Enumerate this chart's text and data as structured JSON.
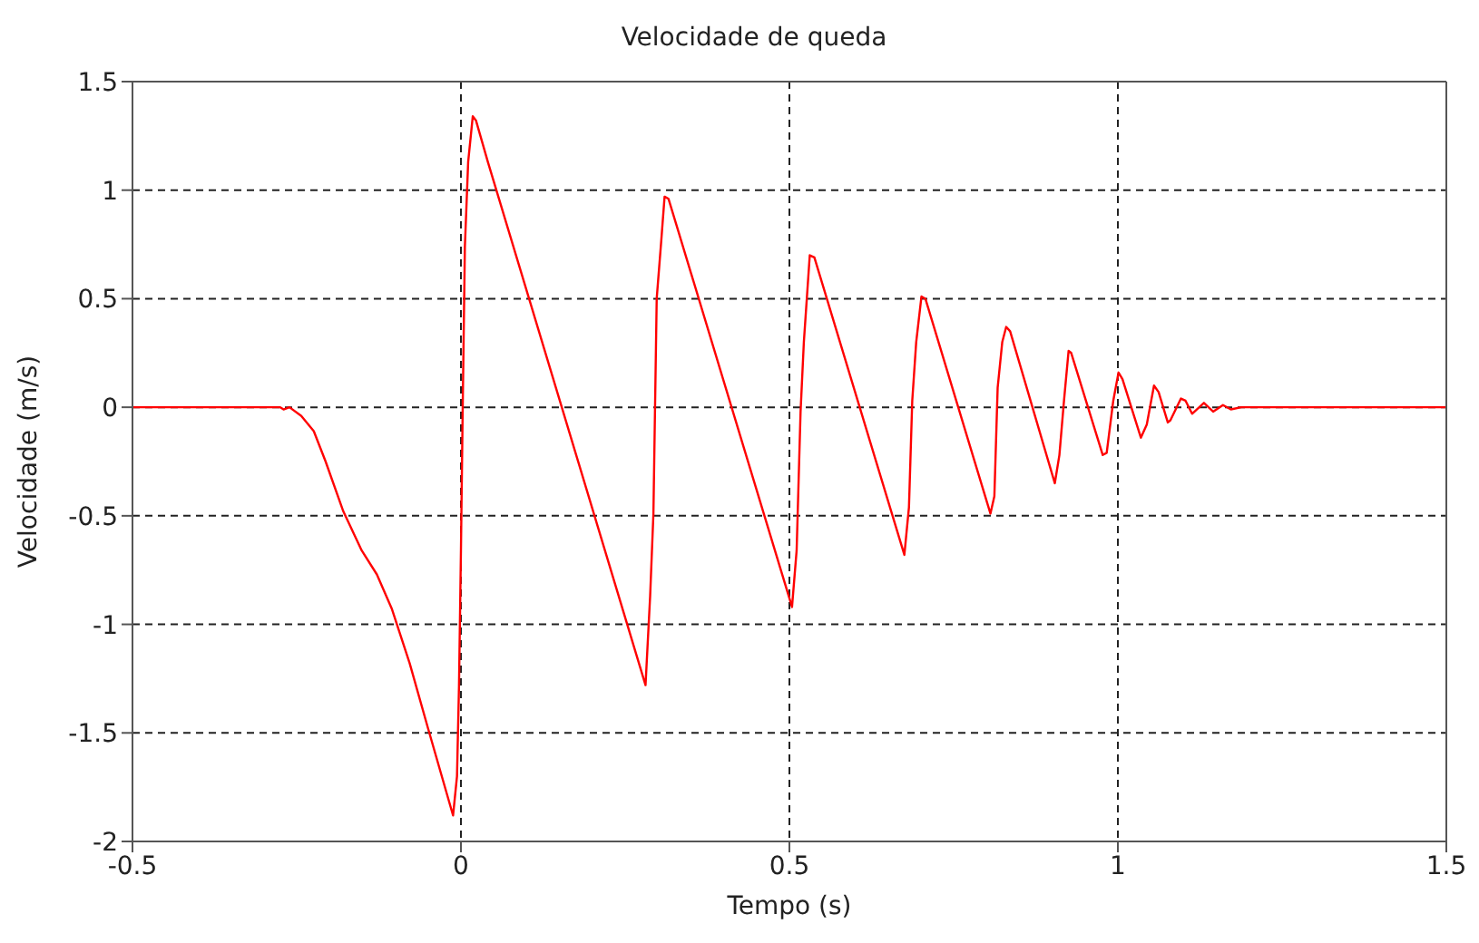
{
  "chart_data": {
    "type": "line",
    "title": "Velocidade de queda",
    "xlabel": "Tempo (s)",
    "ylabel": "Velocidade (m/s)",
    "xlim": [
      -0.5,
      1.5
    ],
    "xticks": [
      -0.5,
      0,
      0.5,
      1,
      1.5
    ],
    "ylim": [
      -2,
      1.5
    ],
    "yticks": [
      -2,
      -1.5,
      -1,
      -0.5,
      0,
      0.5,
      1,
      1.5
    ],
    "grid": true,
    "marker": "none",
    "line_style": "solid",
    "series": [
      {
        "color": "#ff0000",
        "x": [
          -0.5,
          -0.275,
          -0.27,
          -0.261,
          -0.243,
          -0.224,
          -0.206,
          -0.179,
          -0.151,
          -0.128,
          -0.105,
          -0.078,
          -0.05,
          -0.012,
          -0.006,
          -0.003,
          0.0,
          0.003,
          0.006,
          0.011,
          0.018,
          0.023,
          0.041,
          0.281,
          0.288,
          0.293,
          0.298,
          0.305,
          0.31,
          0.316,
          0.504,
          0.511,
          0.517,
          0.522,
          0.531,
          0.538,
          0.675,
          0.682,
          0.687,
          0.693,
          0.701,
          0.707,
          0.806,
          0.812,
          0.817,
          0.824,
          0.83,
          0.836,
          0.904,
          0.911,
          0.918,
          0.925,
          0.929,
          0.977,
          0.983,
          0.993,
          1.001,
          1.007,
          1.035,
          1.044,
          1.055,
          1.062,
          1.076,
          1.08,
          1.096,
          1.103,
          1.113,
          1.131,
          1.145,
          1.16,
          1.172,
          1.188,
          1.5
        ],
        "values": [
          0,
          0,
          -0.01,
          0,
          -0.04,
          -0.11,
          -0.25,
          -0.48,
          -0.66,
          -0.77,
          -0.93,
          -1.18,
          -1.48,
          -1.88,
          -1.7,
          -1.29,
          -0.66,
          0.07,
          0.74,
          1.13,
          1.34,
          1.32,
          1.13,
          -1.28,
          -0.87,
          -0.49,
          0.5,
          0.77,
          0.97,
          0.96,
          -0.92,
          -0.66,
          -0.02,
          0.3,
          0.7,
          0.69,
          -0.68,
          -0.46,
          0.03,
          0.3,
          0.51,
          0.5,
          -0.49,
          -0.41,
          0.09,
          0.3,
          0.37,
          0.35,
          -0.35,
          -0.22,
          0.03,
          0.26,
          0.25,
          -0.22,
          -0.21,
          0.03,
          0.16,
          0.13,
          -0.14,
          -0.08,
          0.1,
          0.07,
          -0.07,
          -0.06,
          0.04,
          0.03,
          -0.03,
          0.02,
          -0.02,
          0.01,
          -0.01,
          0,
          0
        ]
      }
    ]
  }
}
